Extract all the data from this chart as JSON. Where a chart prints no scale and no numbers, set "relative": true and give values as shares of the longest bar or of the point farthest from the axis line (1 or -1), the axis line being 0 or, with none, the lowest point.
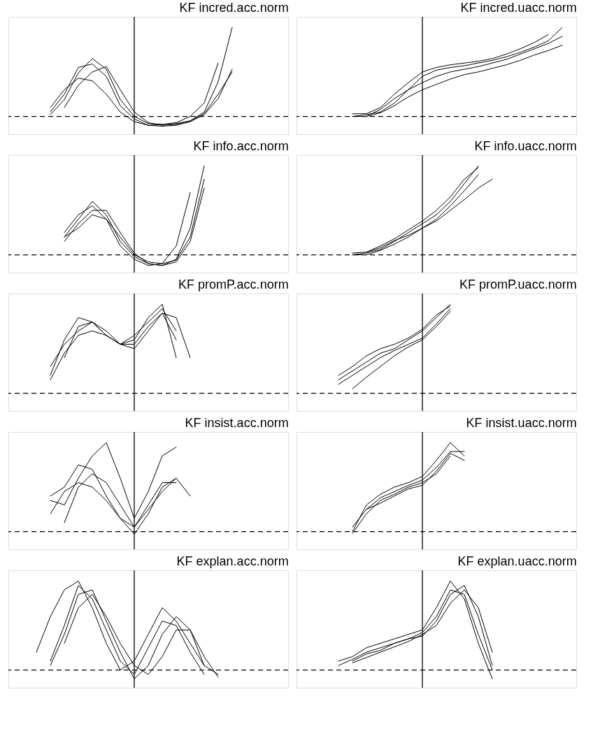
{
  "chart_data": [
    {
      "type": "line",
      "title": "KF incred.acc.norm",
      "relative": true,
      "tick_labels": false,
      "line_style": "solid",
      "categories": [
        null,
        null,
        null,
        null,
        null,
        null,
        null,
        null,
        null,
        null,
        null,
        null,
        null,
        null,
        null,
        null,
        null,
        null,
        null,
        null,
        null
      ],
      "ref_lines": [
        {
          "axis": "y",
          "value": 0,
          "color": "#000000",
          "line_style": "dashed"
        }
      ],
      "series": [
        {
          "color": "#000000",
          "values": [
            null,
            null,
            null,
            0.02,
            0.19,
            0.49,
            0.65,
            0.53,
            0.19,
            0,
            -0.08,
            -0.09,
            -0.08,
            -0.05,
            0.05,
            0.39,
            1.0,
            null,
            null,
            null,
            null
          ]
        },
        {
          "color": "#000000",
          "values": [
            null,
            null,
            null,
            0.05,
            0.25,
            0.55,
            0.59,
            0.45,
            0.12,
            -0.03,
            -0.1,
            -0.11,
            -0.1,
            -0.06,
            0.02,
            0.2,
            0.53,
            null,
            null,
            null,
            null
          ]
        },
        {
          "color": "#000000",
          "values": [
            null,
            null,
            null,
            null,
            0.1,
            0.35,
            0.5,
            0.56,
            0.3,
            0.05,
            -0.07,
            -0.1,
            -0.09,
            -0.05,
            0.03,
            0.25,
            0.5,
            null,
            null,
            null,
            null
          ]
        },
        {
          "color": "#000000",
          "values": [
            null,
            null,
            null,
            0.1,
            0.3,
            0.43,
            0.4,
            0.25,
            0.05,
            -0.06,
            -0.1,
            -0.09,
            -0.07,
            0,
            0.15,
            0.6,
            null,
            null,
            null,
            null,
            null
          ]
        }
      ]
    },
    {
      "type": "line",
      "title": "KF incred.uacc.norm",
      "relative": true,
      "tick_labels": false,
      "line_style": "solid",
      "categories": [
        null,
        null,
        null,
        null,
        null,
        null,
        null,
        null,
        null,
        null,
        null,
        null,
        null,
        null,
        null,
        null,
        null,
        null,
        null,
        null,
        null
      ],
      "ref_lines": [
        {
          "axis": "y",
          "value": 0,
          "color": "#000000",
          "line_style": "dashed"
        }
      ],
      "series": [
        {
          "color": "#000000",
          "values": [
            null,
            null,
            null,
            null,
            0,
            0.02,
            0.05,
            0.15,
            0.3,
            0.45,
            0.52,
            0.55,
            0.57,
            0.6,
            0.63,
            0.67,
            0.72,
            0.78,
            0.85,
            1.0,
            null
          ]
        },
        {
          "color": "#000000",
          "values": [
            null,
            null,
            null,
            null,
            0.03,
            0.03,
            0.1,
            0.25,
            0.38,
            0.5,
            0.55,
            0.58,
            0.6,
            0.62,
            0.65,
            0.7,
            0.76,
            0.83,
            0.92,
            null,
            null
          ]
        },
        {
          "color": "#000000",
          "values": [
            null,
            null,
            null,
            null,
            0,
            0,
            0.08,
            0.2,
            0.3,
            0.38,
            0.45,
            0.5,
            0.53,
            0.56,
            0.6,
            0.64,
            0.7,
            0.76,
            0.82,
            0.9,
            null
          ]
        },
        {
          "color": "#000000",
          "values": [
            null,
            null,
            null,
            null,
            null,
            0,
            0.04,
            0.12,
            0.22,
            0.3,
            0.36,
            0.42,
            0.47,
            0.5,
            0.54,
            0.58,
            0.63,
            0.69,
            0.74,
            0.8,
            null
          ]
        }
      ]
    },
    {
      "type": "line",
      "title": "KF info.acc.norm",
      "relative": true,
      "tick_labels": false,
      "line_style": "solid",
      "categories": [
        null,
        null,
        null,
        null,
        null,
        null,
        null,
        null,
        null,
        null,
        null,
        null,
        null,
        null,
        null,
        null,
        null,
        null,
        null,
        null,
        null
      ],
      "ref_lines": [
        {
          "axis": "y",
          "value": 0,
          "color": "#000000",
          "line_style": "dashed"
        }
      ],
      "series": [
        {
          "color": "#000000",
          "values": [
            null,
            null,
            null,
            null,
            0.2,
            0.4,
            0.6,
            0.45,
            0.15,
            -0.02,
            -0.1,
            -0.12,
            -0.05,
            0.3,
            1.0,
            null,
            null,
            null,
            null,
            null,
            null
          ]
        },
        {
          "color": "#000000",
          "values": [
            null,
            null,
            null,
            null,
            0.25,
            0.45,
            0.55,
            0.4,
            0.1,
            -0.05,
            -0.12,
            -0.1,
            0.1,
            0.7,
            null,
            null,
            null,
            null,
            null,
            null,
            null
          ]
        },
        {
          "color": "#000000",
          "values": [
            null,
            null,
            null,
            null,
            0.15,
            0.35,
            0.5,
            0.5,
            0.25,
            0.02,
            -0.1,
            -0.12,
            -0.08,
            0.15,
            0.75,
            null,
            null,
            null,
            null,
            null,
            null
          ]
        },
        {
          "color": "#000000",
          "values": [
            null,
            null,
            null,
            null,
            0.2,
            0.3,
            0.45,
            0.4,
            0.2,
            0,
            -0.08,
            -0.1,
            -0.06,
            0.2,
            0.85,
            null,
            null,
            null,
            null,
            null,
            null
          ]
        }
      ]
    },
    {
      "type": "line",
      "title": "KF info.uacc.norm",
      "relative": true,
      "tick_labels": false,
      "line_style": "solid",
      "categories": [
        null,
        null,
        null,
        null,
        null,
        null,
        null,
        null,
        null,
        null,
        null,
        null,
        null,
        null,
        null,
        null,
        null,
        null,
        null,
        null,
        null
      ],
      "ref_lines": [
        {
          "axis": "y",
          "value": 0,
          "color": "#000000",
          "line_style": "dashed"
        }
      ],
      "series": [
        {
          "color": "#000000",
          "values": [
            null,
            null,
            null,
            null,
            0,
            0.02,
            0.06,
            0.15,
            0.25,
            0.35,
            0.45,
            0.6,
            0.8,
            1.0,
            null,
            null,
            null,
            null,
            null,
            null,
            null
          ]
        },
        {
          "color": "#000000",
          "values": [
            null,
            null,
            null,
            null,
            0.02,
            0.03,
            0.1,
            0.18,
            0.28,
            0.38,
            0.5,
            0.65,
            0.85,
            0.98,
            null,
            null,
            null,
            null,
            null,
            null,
            null
          ]
        },
        {
          "color": "#000000",
          "values": [
            null,
            null,
            null,
            null,
            0,
            0,
            0.05,
            0.12,
            0.2,
            0.3,
            0.4,
            0.55,
            0.72,
            0.9,
            null,
            null,
            null,
            null,
            null,
            null,
            null
          ]
        },
        {
          "color": "#000000",
          "values": [
            null,
            null,
            null,
            null,
            null,
            0.03,
            0.08,
            0.16,
            0.22,
            0.3,
            0.38,
            0.5,
            0.62,
            0.75,
            0.85,
            null,
            null,
            null,
            null,
            null,
            null
          ]
        }
      ]
    },
    {
      "type": "line",
      "title": "KF promP.acc.norm",
      "relative": true,
      "tick_labels": false,
      "line_style": "solid",
      "categories": [
        null,
        null,
        null,
        null,
        null,
        null,
        null,
        null,
        null,
        null,
        null,
        null,
        null,
        null,
        null,
        null,
        null,
        null,
        null,
        null,
        null
      ],
      "ref_lines": [
        {
          "axis": "y",
          "value": 0,
          "color": "#000000",
          "line_style": "dashed"
        }
      ],
      "series": [
        {
          "color": "#000000",
          "values": [
            null,
            null,
            null,
            0.2,
            0.6,
            0.85,
            0.8,
            0.65,
            0.55,
            0.6,
            0.85,
            1.0,
            0.4,
            null,
            null,
            null,
            null,
            null,
            null,
            null,
            null
          ]
        },
        {
          "color": "#000000",
          "values": [
            null,
            null,
            null,
            0.3,
            0.55,
            0.7,
            0.8,
            0.7,
            0.55,
            0.55,
            0.75,
            0.9,
            0.85,
            0.4,
            null,
            null,
            null,
            null,
            null,
            null,
            null
          ]
        },
        {
          "color": "#000000",
          "values": [
            null,
            null,
            null,
            null,
            0.4,
            0.75,
            0.8,
            0.65,
            0.55,
            0.5,
            0.7,
            0.9,
            0.6,
            null,
            null,
            null,
            null,
            null,
            null,
            null,
            null
          ]
        },
        {
          "color": "#000000",
          "values": [
            null,
            null,
            null,
            0.15,
            0.45,
            0.65,
            0.7,
            0.65,
            0.55,
            0.65,
            0.8,
            0.95,
            0.7,
            null,
            null,
            null,
            null,
            null,
            null,
            null,
            null
          ]
        }
      ]
    },
    {
      "type": "line",
      "title": "KF promP.uacc.norm",
      "relative": true,
      "tick_labels": false,
      "line_style": "solid",
      "categories": [
        null,
        null,
        null,
        null,
        null,
        null,
        null,
        null,
        null,
        null,
        null,
        null,
        null,
        null,
        null,
        null,
        null,
        null,
        null,
        null,
        null
      ],
      "ref_lines": [
        {
          "axis": "y",
          "value": 0,
          "color": "#000000",
          "line_style": "dashed"
        }
      ],
      "series": [
        {
          "color": "#000000",
          "values": [
            null,
            null,
            null,
            0.15,
            0.25,
            0.35,
            0.45,
            0.5,
            0.6,
            0.7,
            0.85,
            1.0,
            null,
            null,
            null,
            null,
            null,
            null,
            null,
            null,
            null
          ]
        },
        {
          "color": "#000000",
          "values": [
            null,
            null,
            null,
            0.1,
            0.2,
            0.3,
            0.4,
            0.48,
            0.55,
            0.62,
            0.78,
            0.95,
            null,
            null,
            null,
            null,
            null,
            null,
            null,
            null,
            null
          ]
        },
        {
          "color": "#000000",
          "values": [
            null,
            null,
            null,
            null,
            0.05,
            0.18,
            0.3,
            0.42,
            0.52,
            0.6,
            0.75,
            0.92,
            null,
            null,
            null,
            null,
            null,
            null,
            null,
            null,
            null
          ]
        },
        {
          "color": "#000000",
          "values": [
            null,
            null,
            null,
            0.2,
            0.3,
            0.42,
            0.5,
            0.55,
            0.62,
            0.72,
            0.88,
            0.98,
            null,
            null,
            null,
            null,
            null,
            null,
            null,
            null,
            null
          ]
        }
      ]
    },
    {
      "type": "line",
      "title": "KF insist.acc.norm",
      "relative": true,
      "tick_labels": false,
      "line_style": "solid",
      "categories": [
        null,
        null,
        null,
        null,
        null,
        null,
        null,
        null,
        null,
        null,
        null,
        null,
        null,
        null,
        null,
        null,
        null,
        null,
        null,
        null,
        null
      ],
      "ref_lines": [
        {
          "axis": "y",
          "value": 0,
          "color": "#000000",
          "line_style": "dashed"
        }
      ],
      "series": [
        {
          "color": "#000000",
          "values": [
            null,
            null,
            null,
            0.35,
            0.3,
            0.6,
            0.85,
            1.0,
            0.6,
            0.15,
            0.45,
            0.85,
            0.95,
            null,
            null,
            null,
            null,
            null,
            null,
            null,
            null
          ]
        },
        {
          "color": "#000000",
          "values": [
            null,
            null,
            null,
            0.4,
            0.5,
            0.75,
            0.7,
            0.4,
            0.15,
            -0.03,
            0.2,
            0.5,
            0.6,
            null,
            null,
            null,
            null,
            null,
            null,
            null,
            null
          ]
        },
        {
          "color": "#000000",
          "values": [
            null,
            null,
            null,
            null,
            0.1,
            0.5,
            0.65,
            0.55,
            0.3,
            0.05,
            0.3,
            0.55,
            0.55,
            null,
            null,
            null,
            null,
            null,
            null,
            null,
            null
          ]
        },
        {
          "color": "#000000",
          "values": [
            null,
            null,
            null,
            0.2,
            0.45,
            0.55,
            0.5,
            0.35,
            0.15,
            0.05,
            0.25,
            0.45,
            0.6,
            0.4,
            null,
            null,
            null,
            null,
            null,
            null,
            null
          ]
        }
      ]
    },
    {
      "type": "line",
      "title": "KF insist.uacc.norm",
      "relative": true,
      "tick_labels": false,
      "line_style": "solid",
      "categories": [
        null,
        null,
        null,
        null,
        null,
        null,
        null,
        null,
        null,
        null,
        null,
        null,
        null,
        null,
        null,
        null,
        null,
        null,
        null,
        null,
        null
      ],
      "ref_lines": [
        {
          "axis": "y",
          "value": 0,
          "color": "#000000",
          "line_style": "dashed"
        }
      ],
      "series": [
        {
          "color": "#000000",
          "values": [
            null,
            null,
            null,
            null,
            0,
            0.3,
            0.42,
            0.5,
            0.55,
            0.62,
            0.8,
            1.0,
            0.85,
            null,
            null,
            null,
            null,
            null,
            null,
            null,
            null
          ]
        },
        {
          "color": "#000000",
          "values": [
            null,
            null,
            null,
            null,
            0.05,
            0.25,
            0.38,
            0.45,
            0.52,
            0.58,
            0.72,
            0.9,
            0.9,
            null,
            null,
            null,
            null,
            null,
            null,
            null,
            null
          ]
        },
        {
          "color": "#000000",
          "values": [
            null,
            null,
            null,
            null,
            -0.02,
            0.2,
            0.35,
            0.42,
            0.5,
            0.55,
            0.65,
            0.85,
            null,
            null,
            null,
            null,
            null,
            null,
            null,
            null,
            null
          ]
        },
        {
          "color": "#000000",
          "values": [
            null,
            null,
            null,
            null,
            null,
            0.25,
            0.32,
            0.4,
            0.48,
            0.52,
            0.68,
            0.88,
            0.8,
            null,
            null,
            null,
            null,
            null,
            null,
            null,
            null
          ]
        }
      ]
    },
    {
      "type": "line",
      "title": "KF explan.acc.norm",
      "relative": true,
      "tick_labels": false,
      "line_style": "solid",
      "categories": [
        null,
        null,
        null,
        null,
        null,
        null,
        null,
        null,
        null,
        null,
        null,
        null,
        null,
        null,
        null,
        null,
        null,
        null,
        null,
        null,
        null
      ],
      "ref_lines": [
        {
          "axis": "y",
          "value": 0,
          "color": "#000000",
          "line_style": "dashed"
        }
      ],
      "series": [
        {
          "color": "#000000",
          "values": [
            null,
            null,
            0.2,
            0.6,
            0.9,
            1.0,
            0.7,
            0.3,
            0,
            0.1,
            0.4,
            0.7,
            0.55,
            0.3,
            0.05,
            -0.05,
            null,
            null,
            null,
            null,
            null
          ]
        },
        {
          "color": "#000000",
          "values": [
            null,
            null,
            null,
            0.1,
            0.5,
            0.95,
            0.8,
            0.45,
            0.1,
            -0.05,
            0.25,
            0.55,
            0.5,
            0.2,
            -0.05,
            null,
            null,
            null,
            null,
            null,
            null
          ]
        },
        {
          "color": "#000000",
          "values": [
            null,
            null,
            null,
            0.05,
            0.4,
            0.85,
            0.9,
            0.55,
            0.2,
            -0.1,
            0.05,
            0.4,
            0.6,
            0.45,
            0.15,
            -0.08,
            null,
            null,
            null,
            null,
            null
          ]
        },
        {
          "color": "#000000",
          "values": [
            null,
            null,
            null,
            null,
            0.3,
            0.7,
            0.85,
            0.6,
            0.3,
            0.05,
            -0.05,
            0.15,
            0.45,
            0.45,
            0.05,
            null,
            null,
            null,
            null,
            null,
            null
          ]
        }
      ]
    },
    {
      "type": "line",
      "title": "KF explan.uacc.norm",
      "relative": true,
      "tick_labels": false,
      "line_style": "solid",
      "categories": [
        null,
        null,
        null,
        null,
        null,
        null,
        null,
        null,
        null,
        null,
        null,
        null,
        null,
        null,
        null,
        null,
        null,
        null,
        null,
        null,
        null
      ],
      "ref_lines": [
        {
          "axis": "y",
          "value": 0,
          "color": "#000000",
          "line_style": "dashed"
        }
      ],
      "series": [
        {
          "color": "#000000",
          "values": [
            null,
            null,
            null,
            0.1,
            0.15,
            0.25,
            0.3,
            0.35,
            0.4,
            0.45,
            0.7,
            1.0,
            0.8,
            0.3,
            -0.1,
            null,
            null,
            null,
            null,
            null,
            null
          ]
        },
        {
          "color": "#000000",
          "values": [
            null,
            null,
            null,
            0.05,
            0.12,
            0.2,
            0.25,
            0.3,
            0.35,
            0.42,
            0.6,
            0.9,
            0.85,
            0.4,
            0,
            null,
            null,
            null,
            null,
            null,
            null
          ]
        },
        {
          "color": "#000000",
          "values": [
            null,
            null,
            null,
            null,
            0.1,
            0.18,
            0.22,
            0.3,
            0.35,
            0.38,
            0.55,
            0.85,
            0.95,
            0.6,
            0.05,
            null,
            null,
            null,
            null,
            null,
            null
          ]
        },
        {
          "color": "#000000",
          "values": [
            null,
            null,
            null,
            null,
            0.08,
            0.14,
            0.2,
            0.26,
            0.32,
            0.4,
            0.5,
            0.75,
            0.9,
            0.7,
            0.2,
            null,
            null,
            null,
            null,
            null,
            null
          ]
        }
      ]
    }
  ]
}
